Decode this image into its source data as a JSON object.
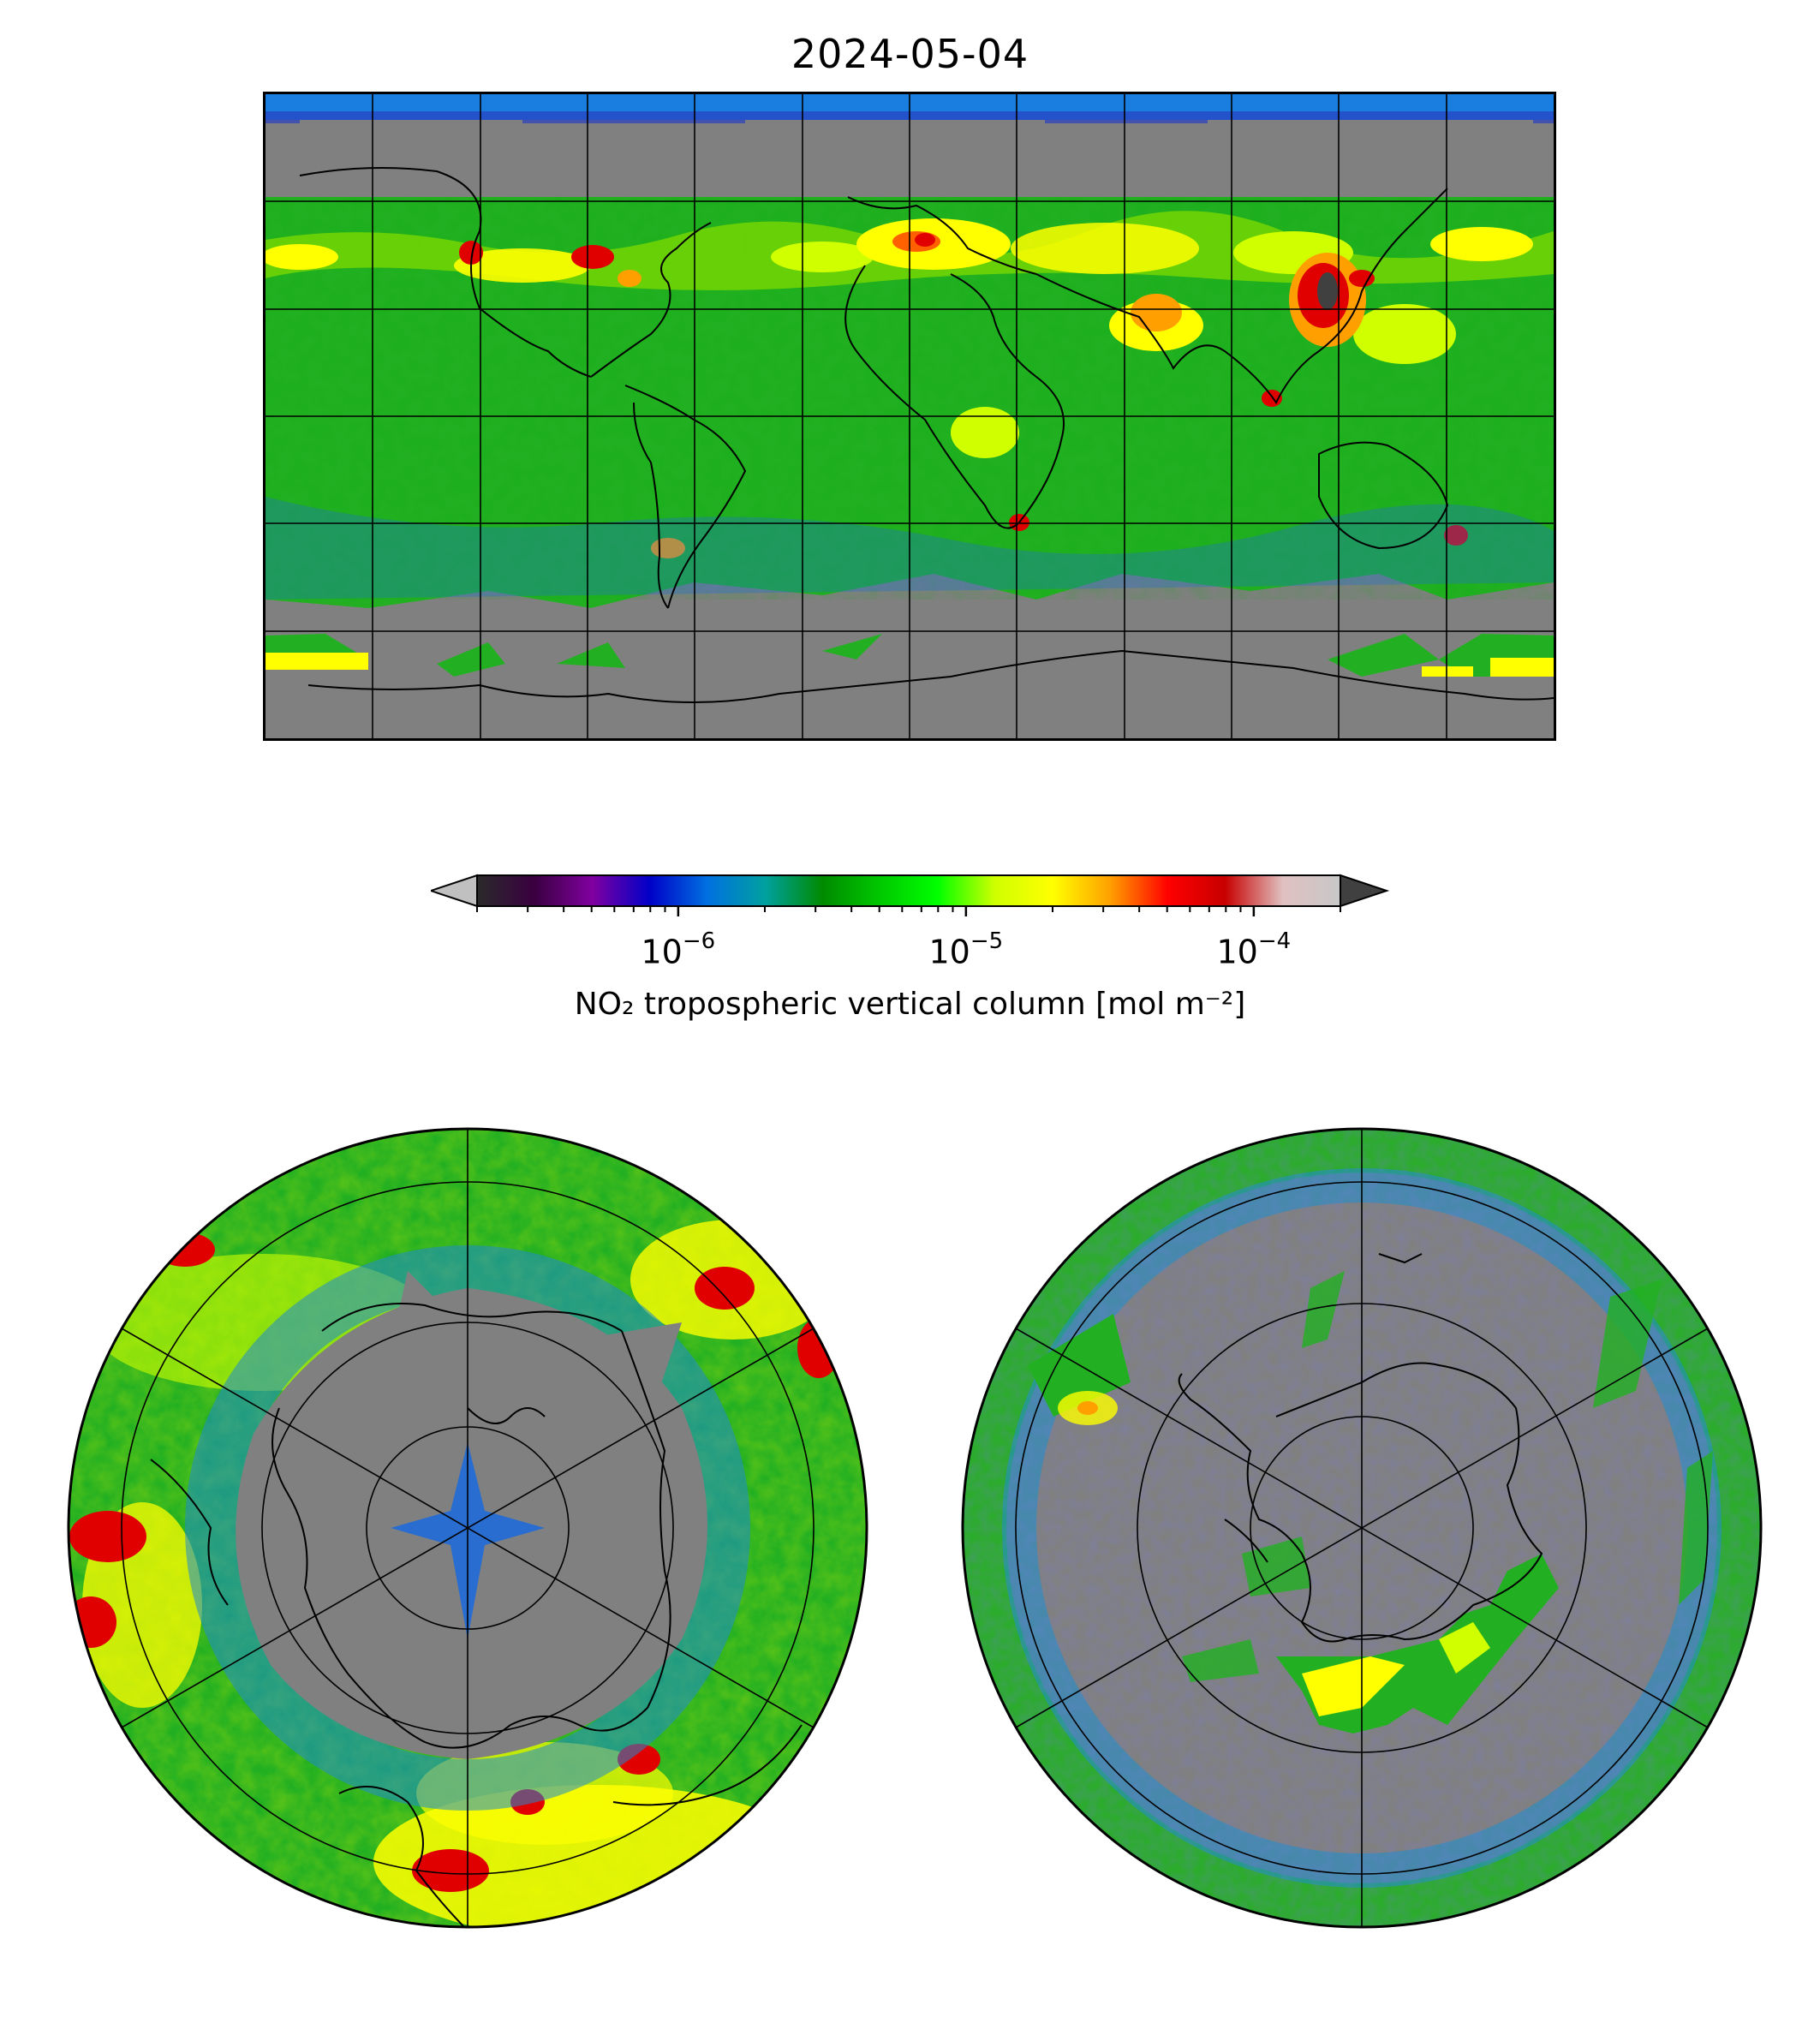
{
  "title": "2024-05-04",
  "colorbar": {
    "label": "NO₂ tropospheric vertical column [mol m⁻²]",
    "scale": "log",
    "range": [
      2e-07,
      0.0002
    ],
    "extend": "both",
    "ticks": [
      {
        "base": "10",
        "exp": "−6",
        "value": 1e-06
      },
      {
        "base": "10",
        "exp": "−5",
        "value": 1e-05
      },
      {
        "base": "10",
        "exp": "−4",
        "value": 0.0001
      }
    ],
    "stops": [
      "#2a2a2a",
      "#3a0040",
      "#8000a0",
      "#0000c8",
      "#0070e0",
      "#00a0a0",
      "#008a00",
      "#00c800",
      "#00ff00",
      "#d0ff00",
      "#ffff00",
      "#ffa000",
      "#ff0000",
      "#c80000",
      "#e0c0c0",
      "#c8c8c8"
    ],
    "under_color": "#c0c0c0",
    "over_color": "#404040"
  },
  "maps": [
    {
      "name": "world-map",
      "projection": "PlateCarree",
      "gridlines": {
        "lon_step_deg": 30,
        "lat_step_deg": 30
      }
    },
    {
      "name": "north-polar-map",
      "projection": "NorthPolarStereo"
    },
    {
      "name": "south-polar-map",
      "projection": "SouthPolarStereo"
    }
  ],
  "colors": {
    "no_data": "#808080",
    "background_field": "#22b022",
    "hotspot": "#e00000",
    "moderate": "#ffe800"
  }
}
